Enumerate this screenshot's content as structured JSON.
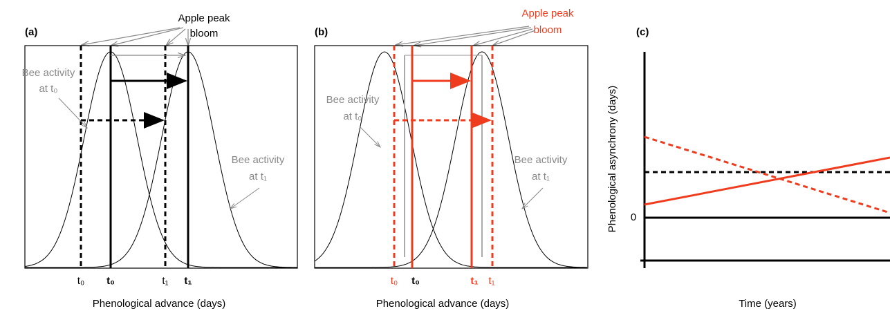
{
  "panels": [
    {
      "label": "(a)",
      "apple": [
        "Apple peak",
        "bloom"
      ],
      "bee_t0": [
        "Bee activity",
        "at t₀"
      ],
      "bee_t1": [
        "Bee activity",
        "at t₁"
      ],
      "ticks": [
        "t₀",
        "t₀",
        "t₁",
        "t₁"
      ],
      "xlabel": "Phenological advance (days)"
    },
    {
      "label": "(b)",
      "apple": [
        "Apple peak",
        "bloom"
      ],
      "bee_t0": [
        "Bee activity",
        "at t₀"
      ],
      "bee_t1": [
        "Bee activity",
        "at t₁"
      ],
      "ticks": [
        "t₀",
        "t₀",
        "t₁",
        "t₁"
      ],
      "xlabel": "Phenological advance (days)"
    },
    {
      "label": "(c)",
      "ylabel": "Phenological asynchrony (days)",
      "zero": "0",
      "xlabel": "Time (years)"
    }
  ]
}
